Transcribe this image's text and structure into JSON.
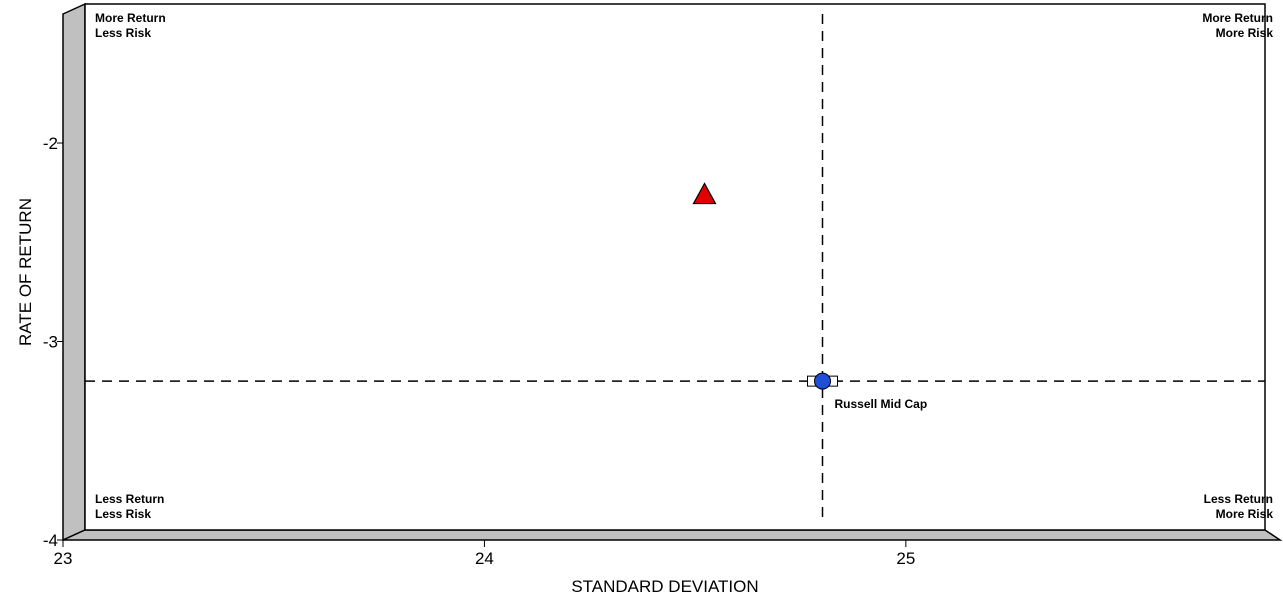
{
  "chart_data": {
    "type": "scatter",
    "title": "",
    "xlabel": "STANDARD DEVIATION",
    "ylabel": "RATE OF RETURN",
    "xlim": [
      23,
      25.8
    ],
    "ylim": [
      -4,
      -1.35
    ],
    "x_ticks": [
      23,
      24,
      25
    ],
    "y_ticks": [
      -2,
      -3,
      -4
    ],
    "grid": false,
    "reference_lines": {
      "x": 24.75,
      "y": -3.25
    },
    "quadrant_labels": {
      "top_left": [
        "More Return",
        "Less Risk"
      ],
      "top_right": [
        "More Return",
        "More Risk"
      ],
      "bottom_left": [
        "Less Return",
        "Less Risk"
      ],
      "bottom_right": [
        "Less Return",
        "More Risk"
      ]
    },
    "points": [
      {
        "x": 24.47,
        "y": -2.31,
        "marker": "triangle",
        "color": "#e00000",
        "label": ""
      },
      {
        "x": 24.75,
        "y": -3.25,
        "marker": "square",
        "color": "#ffffff",
        "label": ""
      },
      {
        "x": 24.75,
        "y": -3.25,
        "marker": "circle",
        "color": "#1f4fd8",
        "label": "Russell Mid Cap"
      }
    ]
  },
  "colors": {
    "wall": "#c0c0c0",
    "frame": "#000000",
    "dash": "#000000"
  }
}
